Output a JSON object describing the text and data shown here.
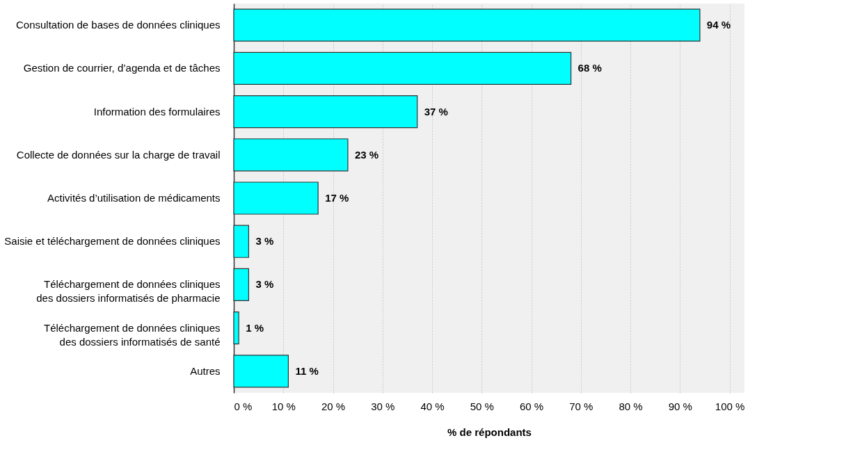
{
  "chart_data": {
    "type": "bar",
    "orientation": "horizontal",
    "xlabel": "% de répondants",
    "categories": [
      "Consultation de bases de données cliniques",
      "Gestion de courrier, d’agenda et de tâches",
      "Information des formulaires",
      "Collecte de données sur la charge de travail",
      "Activités d’utilisation de médicaments",
      "Saisie et téléchargement de données cliniques",
      "Téléchargement de données cliniques\ndes dossiers informatisés de pharmacie",
      "Téléchargement de données cliniques\ndes dossiers informatisés de santé",
      "Autres"
    ],
    "values": [
      94,
      68,
      37,
      23,
      17,
      3,
      3,
      1,
      11
    ],
    "value_labels": [
      "94 %",
      "68 %",
      "37 %",
      "23 %",
      "17 %",
      "3 %",
      "3 %",
      "1 %",
      "11 %"
    ],
    "color": "#00ffff",
    "xlim": [
      0,
      103
    ],
    "xticks": [
      {
        "value": 0,
        "label": "0 %"
      },
      {
        "value": 10,
        "label": "10 %"
      },
      {
        "value": 20,
        "label": "20 %"
      },
      {
        "value": 30,
        "label": "30 %"
      },
      {
        "value": 40,
        "label": "40 %"
      },
      {
        "value": 50,
        "label": "50 %"
      },
      {
        "value": 60,
        "label": "60 %"
      },
      {
        "value": 70,
        "label": "70 %"
      },
      {
        "value": 80,
        "label": "80 %"
      },
      {
        "value": 90,
        "label": "90 %"
      },
      {
        "value": 100,
        "label": "100 %"
      }
    ],
    "grid": "x"
  }
}
